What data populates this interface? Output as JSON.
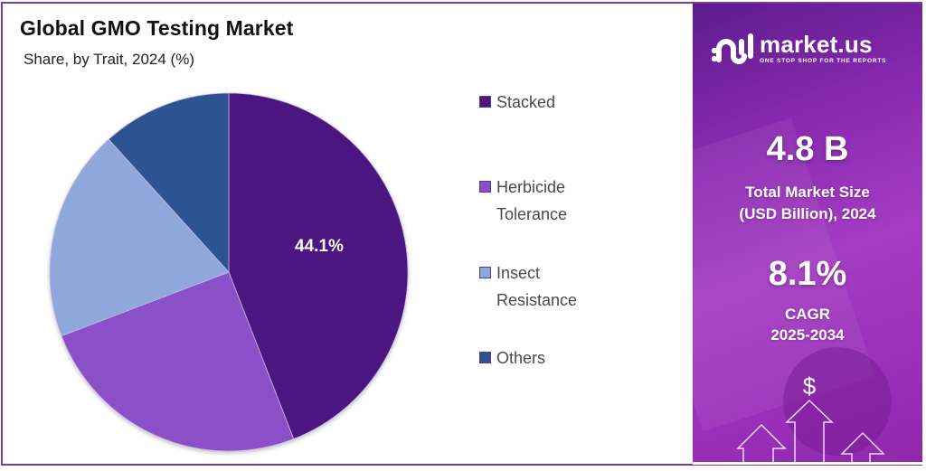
{
  "header": {
    "title": "Global GMO Testing Market",
    "subtitle": "Share, by Trait, 2024 (%)"
  },
  "chart_data": {
    "type": "pie",
    "title": "Global GMO Testing Market",
    "subtitle": "Share, by Trait, 2024 (%)",
    "categories": [
      "Stacked",
      "Herbicide Tolerance",
      "Insect Resistance",
      "Others"
    ],
    "values": [
      44.1,
      25.1,
      19.1,
      11.7
    ],
    "labeled_values": {
      "Stacked": "44.1%"
    },
    "colors": [
      "#4b1680",
      "#8b4fc8",
      "#8ea8dc",
      "#2e5391"
    ],
    "start_angle": "12 o'clock, clockwise",
    "legend_position": "right"
  },
  "pie": {
    "label": "44.1%"
  },
  "legend": {
    "items": [
      {
        "label_line1": "Stacked",
        "label_line2": "",
        "color": "#4b1680"
      },
      {
        "label_line1": "Herbicide",
        "label_line2": "Tolerance",
        "color": "#8b4fc8"
      },
      {
        "label_line1": "Insect",
        "label_line2": "Resistance",
        "color": "#8ea8dc"
      },
      {
        "label_line1": "Others",
        "label_line2": "",
        "color": "#2e5391"
      }
    ]
  },
  "panel": {
    "logo_name": "market.us",
    "logo_tagline": "ONE STOP SHOP FOR THE REPORTS",
    "market_size_value": "4.8 B",
    "market_size_caption_1": "Total Market Size",
    "market_size_caption_2": "(USD Billion), 2024",
    "cagr_value": "8.1%",
    "cagr_caption_1": "CAGR",
    "cagr_caption_2": "2025-2034",
    "dollar_symbol": "$"
  },
  "colors": {
    "border": "#7b3f92",
    "panel_primary": "#8a2ab0"
  }
}
